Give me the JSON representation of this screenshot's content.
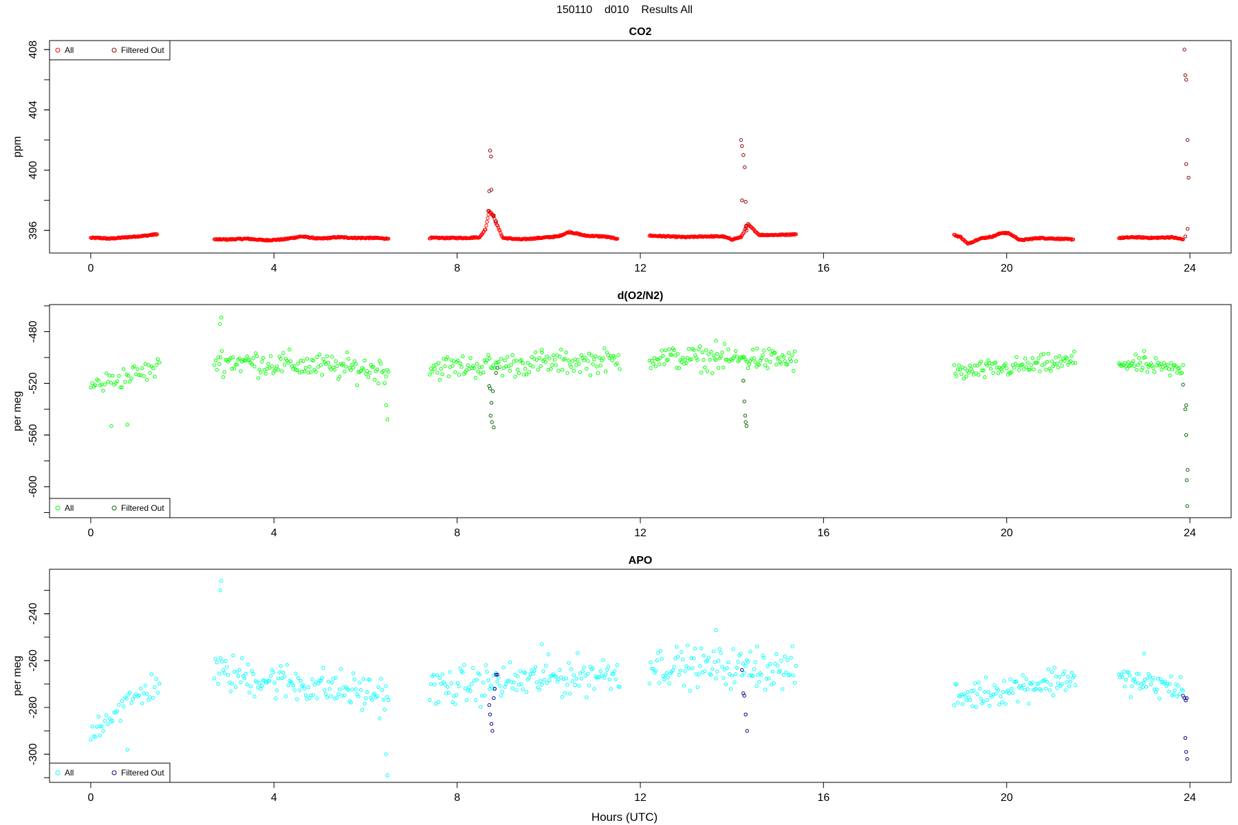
{
  "figure": {
    "title": "150110    d010    Results All",
    "xlabel": "Hours (UTC)"
  },
  "colors": {
    "co2_all": "#ff0000",
    "co2_filtered": "#8b0000",
    "o2n2_all": "#00ff00",
    "o2n2_filtered": "#006400",
    "apo_all": "#00ffff",
    "apo_filtered": "#00008b",
    "axis": "#000000"
  },
  "chart_data": [
    {
      "type": "scatter",
      "title": "CO2",
      "xlabel": "",
      "ylabel": "ppm",
      "xlim": [
        -0.9,
        24.9
      ],
      "ylim": [
        394.5,
        408.6
      ],
      "xticks": [
        0,
        4,
        8,
        12,
        16,
        20,
        24
      ],
      "yticks": [
        396,
        400,
        404,
        408
      ],
      "grid": false,
      "legend": {
        "placement": "top-left",
        "entries": [
          "All",
          "Filtered Out"
        ]
      },
      "series": [
        {
          "name": "All",
          "segments": [
            {
              "x": [
                0.0,
                0.2,
                0.4,
                0.6,
                0.8,
                1.0,
                1.2,
                1.45
              ],
              "y": [
                395.5,
                395.5,
                395.45,
                395.5,
                395.55,
                395.6,
                395.65,
                395.75
              ]
            },
            {
              "x": [
                2.7,
                3.0,
                3.4,
                3.8,
                4.2,
                4.6,
                5.0,
                5.4,
                5.8,
                6.2,
                6.5
              ],
              "y": [
                395.4,
                395.4,
                395.45,
                395.35,
                395.4,
                395.6,
                395.45,
                395.55,
                395.5,
                395.5,
                395.45
              ]
            },
            {
              "x": [
                7.4,
                7.8,
                8.2,
                8.5,
                8.62,
                8.7,
                8.78,
                8.85,
                9.0,
                9.4,
                9.8,
                10.2,
                10.45,
                10.8,
                11.2,
                11.5
              ],
              "y": [
                395.5,
                395.5,
                395.5,
                395.55,
                396.1,
                397.3,
                397.0,
                396.5,
                395.5,
                395.4,
                395.5,
                395.6,
                395.9,
                395.65,
                395.6,
                395.45
              ]
            },
            {
              "x": [
                12.2,
                12.6,
                13.0,
                13.4,
                13.8,
                14.0,
                14.2,
                14.35,
                14.6,
                15.0,
                15.4
              ],
              "y": [
                395.65,
                395.6,
                395.55,
                395.6,
                395.6,
                395.4,
                395.55,
                396.4,
                395.7,
                395.7,
                395.75
              ]
            },
            {
              "x": [
                18.85,
                19.0,
                19.15,
                19.4,
                19.7,
                19.9,
                20.05,
                20.3,
                20.7,
                21.1,
                21.45
              ],
              "y": [
                395.7,
                395.55,
                395.1,
                395.45,
                395.6,
                395.85,
                395.8,
                395.35,
                395.5,
                395.45,
                395.4
              ]
            },
            {
              "x": [
                22.45,
                22.8,
                23.2,
                23.6,
                23.85
              ],
              "y": [
                395.5,
                395.55,
                395.5,
                395.55,
                395.4
              ]
            }
          ]
        },
        {
          "name": "Filtered Out",
          "x": [
            8.72,
            8.74,
            8.7,
            8.75,
            8.68,
            8.8,
            8.85,
            14.2,
            14.22,
            14.25,
            14.28,
            14.3,
            14.22,
            14.3,
            14.32,
            23.88,
            23.9,
            23.92,
            23.95,
            23.97,
            23.92,
            23.95,
            23.9
          ],
          "y": [
            401.3,
            400.9,
            398.6,
            398.7,
            397.3,
            397.0,
            396.6,
            402.0,
            401.6,
            401.0,
            400.2,
            397.9,
            398.0,
            396.3,
            396.0,
            408.0,
            406.3,
            406.0,
            402.0,
            399.5,
            400.4,
            396.1,
            395.6
          ]
        }
      ]
    },
    {
      "type": "scatter",
      "title": "d(O2/N2)",
      "xlabel": "",
      "ylabel": "per meg",
      "xlim": [
        -0.9,
        24.9
      ],
      "ylim": [
        -624,
        -459
      ],
      "xticks": [
        0,
        4,
        8,
        12,
        16,
        20,
        24
      ],
      "yticks": [
        -600,
        -560,
        -520,
        -480
      ],
      "grid": false,
      "legend": {
        "placement": "bottom-left",
        "entries": [
          "All",
          "Filtered Out"
        ]
      },
      "series": [
        {
          "name": "All",
          "clusters": [
            {
              "x0": 0.0,
              "x1": 1.5,
              "n": 45,
              "start": -522,
              "end": -508,
              "spread": 9
            },
            {
              "x0": 2.7,
              "x1": 6.5,
              "n": 140,
              "start": -502,
              "end": -510,
              "spread": 11
            },
            {
              "x0": 7.4,
              "x1": 11.55,
              "n": 150,
              "start": -508,
              "end": -502,
              "spread": 10
            },
            {
              "x0": 12.2,
              "x1": 15.4,
              "n": 120,
              "start": -500,
              "end": -502,
              "spread": 10
            },
            {
              "x0": 18.85,
              "x1": 21.5,
              "n": 100,
              "start": -512,
              "end": -503,
              "spread": 8
            },
            {
              "x0": 22.45,
              "x1": 23.85,
              "n": 55,
              "start": -504,
              "end": -510,
              "spread": 7
            }
          ],
          "x": [
            2.85,
            2.82,
            13.65,
            0.45,
            0.8,
            6.45,
            6.48,
            23.0,
            9.85,
            14.55
          ],
          "y": [
            -469,
            -474,
            -487,
            -553,
            -552,
            -537,
            -548,
            -495,
            -494,
            -493
          ]
        },
        {
          "name": "Filtered Out",
          "x": [
            8.7,
            8.72,
            8.75,
            8.73,
            8.76,
            8.8,
            8.78,
            8.85,
            8.88,
            14.25,
            14.27,
            14.29,
            14.3,
            14.32,
            23.85,
            23.9,
            23.92,
            23.95,
            23.93,
            23.94,
            23.92
          ],
          "y": [
            -522,
            -524,
            -535,
            -545,
            -550,
            -554,
            -526,
            -512,
            -508,
            -518,
            -534,
            -545,
            -550,
            -553,
            -521,
            -540,
            -560,
            -587,
            -595,
            -615,
            -537
          ]
        }
      ]
    },
    {
      "type": "scatter",
      "title": "APO",
      "xlabel": "Hours (UTC)",
      "ylabel": "per meg",
      "xlim": [
        -0.9,
        24.9
      ],
      "ylim": [
        -312,
        -221
      ],
      "xticks": [
        0,
        4,
        8,
        12,
        16,
        20,
        24
      ],
      "yticks": [
        -300,
        -280,
        -260,
        -240
      ],
      "grid": false,
      "legend": {
        "placement": "bottom-left",
        "entries": [
          "All",
          "Filtered Out"
        ]
      },
      "series": [
        {
          "name": "All",
          "clusters": [
            {
              "x0": 0.0,
              "x1": 1.5,
              "n": 45,
              "start": -289,
              "end": -269,
              "spread": 7
            },
            {
              "x0": 2.7,
              "x1": 6.5,
              "n": 140,
              "start": -265,
              "end": -275,
              "spread": 9
            },
            {
              "x0": 7.4,
              "x1": 11.55,
              "n": 150,
              "start": -272,
              "end": -265,
              "spread": 9
            },
            {
              "x0": 12.2,
              "x1": 15.4,
              "n": 120,
              "start": -262,
              "end": -264,
              "spread": 9
            },
            {
              "x0": 18.85,
              "x1": 21.5,
              "n": 100,
              "start": -276,
              "end": -267,
              "spread": 7
            },
            {
              "x0": 22.45,
              "x1": 23.85,
              "n": 55,
              "start": -268,
              "end": -272,
              "spread": 6
            }
          ],
          "x": [
            2.85,
            2.83,
            13.65,
            6.45,
            6.48,
            0.8,
            9.85,
            14.55,
            23.0,
            0.2
          ],
          "y": [
            -226,
            -230,
            -247,
            -300,
            -309,
            -298,
            -253,
            -254,
            -257,
            -292
          ]
        },
        {
          "name": "Filtered Out",
          "x": [
            8.7,
            8.72,
            8.75,
            8.77,
            8.8,
            8.82,
            8.85,
            8.88,
            14.22,
            14.25,
            14.27,
            14.3,
            14.33,
            23.85,
            23.88,
            23.9,
            23.92,
            23.94,
            23.93,
            23.91
          ],
          "y": [
            -279,
            -283,
            -287,
            -290,
            -276,
            -272,
            -266,
            -266,
            -264,
            -274,
            -275,
            -283,
            -290,
            -275,
            -276,
            -293,
            -299,
            -302,
            -276,
            -277
          ]
        }
      ]
    }
  ]
}
